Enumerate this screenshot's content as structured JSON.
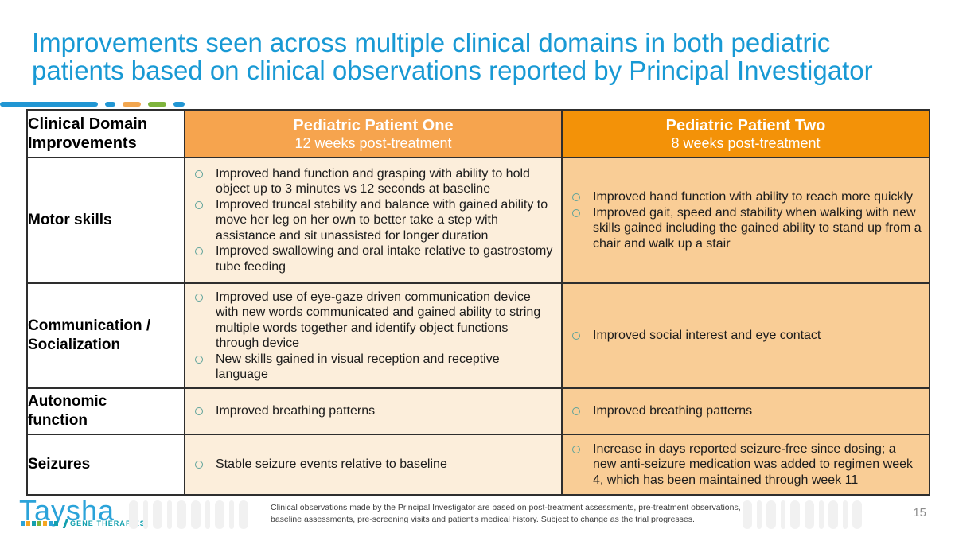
{
  "slide": {
    "title_lines": [
      "Improvements seen across multiple clinical domains in both pediatric",
      "patients based on clinical observations reported by Principal Investigator"
    ],
    "page_number": "15"
  },
  "colors": {
    "title_blue": "#1899D4",
    "header_orange_light": "#F6A44E",
    "header_orange_dark": "#F39208",
    "cell_cream": "#FCEEDB",
    "cell_peach": "#F9CD96",
    "bullet_ring": "#5FA39B",
    "divider_blue": "#2196D3",
    "divider_orange": "#F2A64F",
    "divider_green": "#7EB43C",
    "logo_blue": "#2BA3D9",
    "logo_teal": "#13A0AE"
  },
  "table": {
    "corner_header": "Clinical Domain Improvements",
    "columns": [
      {
        "title": "Pediatric Patient One",
        "subtitle": "12 weeks post-treatment"
      },
      {
        "title": "Pediatric Patient Two",
        "subtitle": "8 weeks post-treatment"
      }
    ],
    "rows": [
      {
        "label": "Motor skills",
        "patient_one": [
          "Improved hand function and grasping with ability to hold object up to 3 minutes vs 12 seconds at baseline",
          "Improved truncal stability and balance with gained ability to move her leg on her own to better take a step with assistance and sit unassisted for longer duration",
          "Improved swallowing and oral intake relative to gastrostomy tube feeding"
        ],
        "patient_two": [
          "Improved hand function with ability to reach more quickly",
          "Improved gait, speed and stability when walking with new skills gained including the gained ability to stand up from a chair and walk up a stair"
        ]
      },
      {
        "label": "Communication / Socialization",
        "patient_one": [
          "Improved use of eye-gaze driven communication device with new words communicated and gained ability to string multiple words together and identify object functions through device",
          "New skills gained in visual reception and receptive language"
        ],
        "patient_two": [
          "Improved social interest and eye contact"
        ]
      },
      {
        "label": "Autonomic function",
        "patient_one": [
          "Improved breathing patterns"
        ],
        "patient_two": [
          "Improved breathing patterns"
        ]
      },
      {
        "label": "Seizures",
        "patient_one": [
          "Stable seizure events relative to baseline"
        ],
        "patient_two": [
          "Increase in days reported seizure-free since dosing; a new anti-seizure medication was added to regimen week 4, which has been maintained through week 11"
        ]
      }
    ]
  },
  "footer": {
    "logo": {
      "name": "Taysha",
      "tagline": "GENE THERAPIES"
    },
    "footnote_lines": [
      "Clinical observations made by the Principal Investigator are based on post-treatment assessments, pre-treatment observations,",
      "baseline assessments, pre-screening visits and patient's medical history. Subject to change as the trial progresses."
    ]
  }
}
